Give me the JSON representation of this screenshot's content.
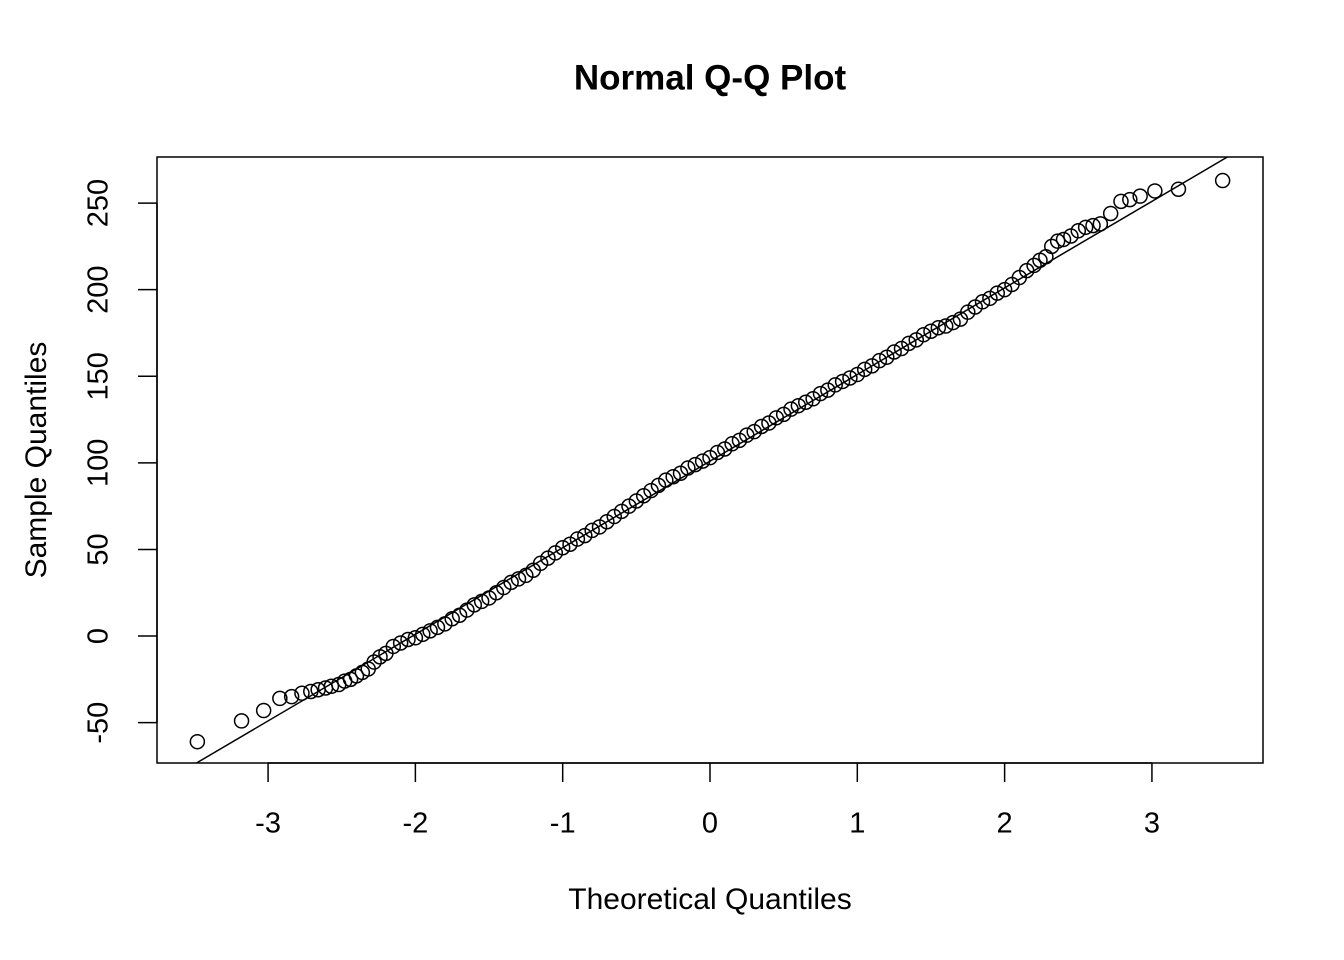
{
  "chart_data": {
    "type": "scatter",
    "title": "Normal Q-Q Plot",
    "x_label": "Theoretical Quantiles",
    "y_label": "Sample Quantiles",
    "xlim": [
      -3.754,
      3.754
    ],
    "ylim": [
      -73.3,
      276.6
    ],
    "xticks": [
      -3,
      -2,
      -1,
      0,
      1,
      2,
      3
    ],
    "yticks": [
      -50,
      0,
      50,
      100,
      150,
      200,
      250
    ],
    "color": "#000000",
    "reference_line": {
      "intercept": 101,
      "slope": 50
    },
    "x": [
      -3.48,
      -3.18,
      -3.03,
      -2.92,
      -2.84,
      -2.77,
      -2.71,
      -2.66,
      -2.61,
      -2.57,
      -2.52,
      -2.48,
      -2.44,
      -2.4,
      -2.36,
      -2.32,
      -2.28,
      -2.24,
      -2.2,
      -2.15,
      -2.1,
      -2.05,
      -2.0,
      -1.95,
      -1.9,
      -1.85,
      -1.8,
      -1.75,
      -1.7,
      -1.65,
      -1.6,
      -1.55,
      -1.5,
      -1.45,
      -1.4,
      -1.35,
      -1.3,
      -1.25,
      -1.2,
      -1.15,
      -1.1,
      -1.05,
      -1.0,
      -0.95,
      -0.9,
      -0.85,
      -0.8,
      -0.75,
      -0.7,
      -0.65,
      -0.6,
      -0.55,
      -0.5,
      -0.45,
      -0.4,
      -0.35,
      -0.3,
      -0.25,
      -0.2,
      -0.15,
      -0.1,
      -0.05,
      0,
      0.05,
      0.1,
      0.15,
      0.2,
      0.25,
      0.3,
      0.35,
      0.4,
      0.45,
      0.5,
      0.55,
      0.6,
      0.65,
      0.7,
      0.75,
      0.8,
      0.85,
      0.9,
      0.95,
      1.0,
      1.05,
      1.1,
      1.15,
      1.2,
      1.25,
      1.3,
      1.35,
      1.4,
      1.45,
      1.5,
      1.55,
      1.6,
      1.65,
      1.7,
      1.75,
      1.8,
      1.85,
      1.9,
      1.95,
      2.0,
      2.05,
      2.1,
      2.15,
      2.2,
      2.24,
      2.28,
      2.32,
      2.36,
      2.4,
      2.45,
      2.5,
      2.55,
      2.6,
      2.65,
      2.72,
      2.79,
      2.85,
      2.92,
      3.02,
      3.18,
      3.48
    ],
    "values": [
      -61,
      -49,
      -43,
      -36,
      -35,
      -33,
      -32,
      -31,
      -30,
      -29,
      -28,
      -26,
      -25,
      -23,
      -21,
      -19,
      -15,
      -12,
      -10,
      -6,
      -4,
      -2,
      -1,
      1,
      3,
      5,
      7,
      10,
      12,
      15,
      18,
      20,
      22,
      25,
      28,
      31,
      33,
      35,
      38,
      42,
      45,
      48,
      51,
      53,
      56,
      58,
      61,
      63,
      66,
      69,
      72,
      75,
      78,
      81,
      84,
      87,
      90,
      92,
      94,
      97,
      99,
      101,
      103,
      106,
      108,
      111,
      113,
      116,
      118,
      121,
      123,
      126,
      128,
      131,
      133,
      135,
      137,
      140,
      142,
      145,
      147,
      149,
      151,
      154,
      156,
      159,
      161,
      164,
      166,
      169,
      171,
      174,
      176,
      178,
      179,
      181,
      183,
      187,
      190,
      193,
      195,
      198,
      200,
      203,
      207,
      211,
      214,
      217,
      219,
      225,
      228,
      229,
      231,
      234,
      236,
      237,
      238,
      244,
      251,
      252,
      254,
      257,
      258,
      263
    ]
  }
}
